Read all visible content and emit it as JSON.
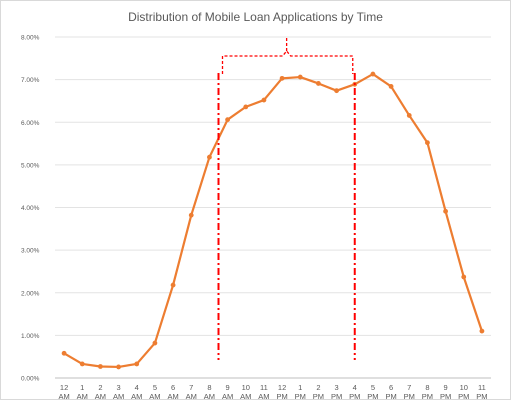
{
  "chart_data": {
    "type": "line",
    "title": "Distribution of Mobile Loan Applications by Time",
    "xlabel": "",
    "ylabel": "",
    "categories": [
      [
        "12",
        "AM"
      ],
      [
        "1",
        "AM"
      ],
      [
        "2",
        "AM"
      ],
      [
        "3",
        "AM"
      ],
      [
        "4",
        "AM"
      ],
      [
        "5",
        "AM"
      ],
      [
        "6",
        "AM"
      ],
      [
        "7",
        "AM"
      ],
      [
        "8",
        "AM"
      ],
      [
        "9",
        "AM"
      ],
      [
        "10",
        "AM"
      ],
      [
        "11",
        "AM"
      ],
      [
        "12",
        "PM"
      ],
      [
        "1",
        "PM"
      ],
      [
        "2",
        "PM"
      ],
      [
        "3",
        "PM"
      ],
      [
        "4",
        "PM"
      ],
      [
        "5",
        "PM"
      ],
      [
        "6",
        "PM"
      ],
      [
        "7",
        "PM"
      ],
      [
        "8",
        "PM"
      ],
      [
        "9",
        "PM"
      ],
      [
        "10",
        "PM"
      ],
      [
        "11",
        "PM"
      ]
    ],
    "y_ticks": [
      "0.00%",
      "1.00%",
      "2.00%",
      "3.00%",
      "4.00%",
      "5.00%",
      "6.00%",
      "7.00%",
      "8.00%"
    ],
    "ylim": [
      0,
      8
    ],
    "series": [
      {
        "values": [
          0.58,
          0.33,
          0.27,
          0.26,
          0.33,
          0.82,
          2.18,
          3.82,
          5.18,
          6.06,
          6.36,
          6.52,
          7.03,
          7.06,
          6.91,
          6.74,
          6.89,
          7.13,
          6.84,
          6.16,
          5.52,
          3.91,
          2.37,
          1.1
        ],
        "color": "#ed7d31"
      }
    ],
    "grid": true,
    "annotation": {
      "type": "bracket",
      "from_category_index": 8.5,
      "to_category_index": 16,
      "color": "#ff0000",
      "style": "dash-dot"
    }
  }
}
